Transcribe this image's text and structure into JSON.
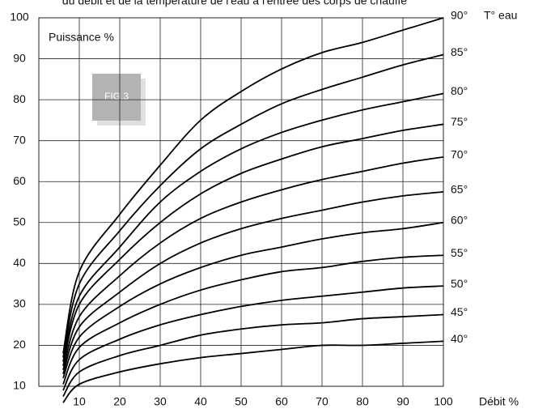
{
  "chart_data": {
    "type": "line",
    "title": "du débit et de la température de l'eau à l'entrée des corps de chauffe",
    "y_label": "Puissance %",
    "x_label": "Débit %",
    "legend_title": "T° eau",
    "figure_label": "FIG.3",
    "x": [
      6,
      10,
      20,
      30,
      40,
      50,
      60,
      70,
      80,
      90,
      100
    ],
    "series": [
      {
        "name": "90°",
        "color": "#000000",
        "values": [
          18,
          38,
          52,
          64,
          75,
          82,
          87.5,
          91.5,
          94,
          97,
          100
        ]
      },
      {
        "name": "85°",
        "color": "#000000",
        "values": [
          17,
          35,
          48,
          59,
          68,
          74,
          79,
          82.5,
          85.5,
          88.5,
          91
        ]
      },
      {
        "name": "80°",
        "color": "#000000",
        "values": [
          16,
          32,
          44,
          55,
          62.5,
          68,
          72,
          75,
          77.5,
          79.5,
          81.5
        ]
      },
      {
        "name": "75°",
        "color": "#000000",
        "values": [
          15,
          30,
          41,
          50,
          57,
          62,
          65.5,
          68.5,
          70.5,
          72.5,
          74
        ]
      },
      {
        "name": "70°",
        "color": "#000000",
        "values": [
          14,
          27,
          37,
          45,
          51,
          55,
          58,
          60.5,
          62.5,
          64.5,
          66
        ]
      },
      {
        "name": "65°",
        "color": "#000000",
        "values": [
          13,
          24.5,
          33,
          40,
          45,
          48.5,
          51,
          53,
          55,
          56.5,
          57.5
        ]
      },
      {
        "name": "60°",
        "color": "#000000",
        "values": [
          12,
          22,
          29.5,
          35,
          39,
          42,
          44,
          46,
          47.5,
          48.5,
          50
        ]
      },
      {
        "name": "55°",
        "color": "#000000",
        "values": [
          10.5,
          19.5,
          25.5,
          30,
          33.5,
          36,
          38,
          39,
          40.5,
          41.5,
          42
        ]
      },
      {
        "name": "50°",
        "color": "#000000",
        "values": [
          9,
          16.5,
          21.5,
          25,
          27.5,
          29.5,
          31,
          32,
          33,
          34,
          34.5
        ]
      },
      {
        "name": "45°",
        "color": "#000000",
        "values": [
          7.5,
          13.5,
          17.5,
          20,
          22.5,
          24,
          25,
          25.5,
          26.5,
          27,
          27.5
        ]
      },
      {
        "name": "40°",
        "color": "#000000",
        "values": [
          6,
          10.5,
          13.5,
          15.5,
          17,
          18,
          19,
          20,
          20,
          20.5,
          21
        ]
      }
    ],
    "xlim": [
      0,
      100
    ],
    "ylim": [
      10,
      100
    ],
    "xticks": [
      10,
      20,
      30,
      40,
      50,
      60,
      70,
      80,
      90,
      100
    ],
    "yticks": [
      10,
      20,
      30,
      40,
      50,
      60,
      70,
      80,
      90,
      100
    ],
    "grid": true
  }
}
